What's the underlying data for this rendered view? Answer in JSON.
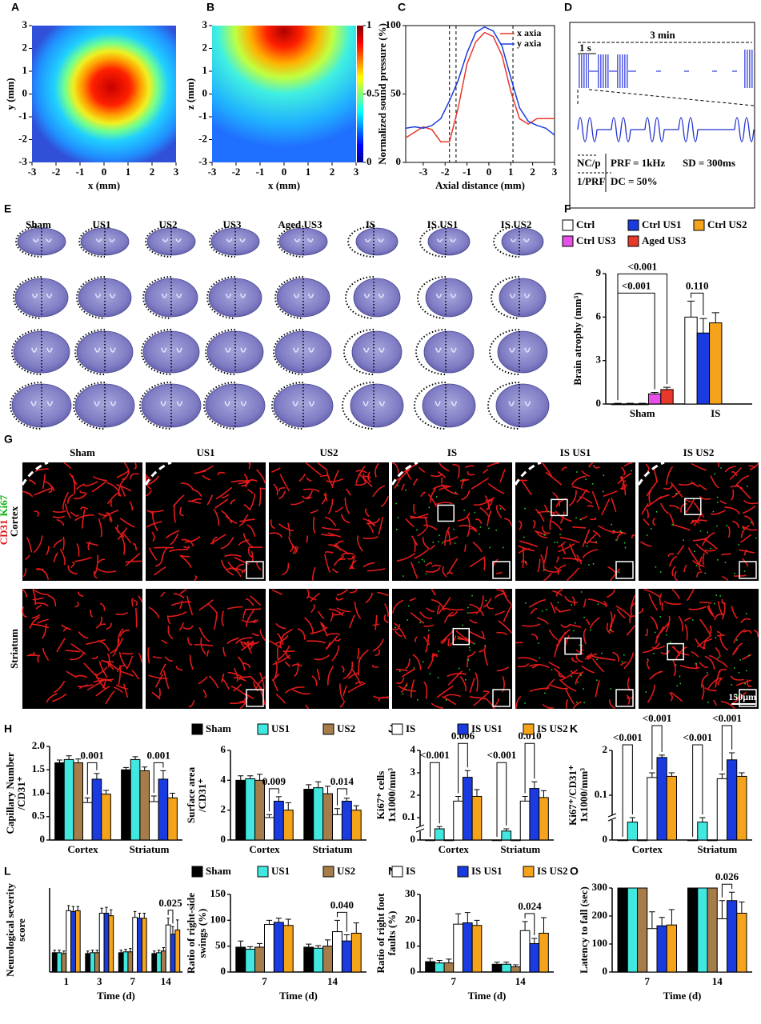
{
  "chart_data": [
    {
      "panel": "A",
      "type": "heatmap",
      "xlabel": "x (mm)",
      "ylabel": [
        "y (mm)"
      ],
      "xlim": [
        -3,
        3
      ],
      "ylim": [
        -3,
        3
      ],
      "xticks": [
        -3,
        -2,
        -1,
        0,
        1,
        2,
        3
      ],
      "yticks": [
        -3,
        -2,
        -1,
        0,
        1,
        2,
        3
      ]
    },
    {
      "panel": "B",
      "type": "heatmap",
      "xlabel": "x (mm)",
      "ylabel": [
        "z (mm)"
      ],
      "xlim": [
        -3,
        3
      ],
      "ylim": [
        -3,
        3
      ],
      "xticks": [
        -3,
        -2,
        -1,
        0,
        1,
        2,
        3
      ],
      "yticks": [
        -3,
        -2,
        -1,
        0,
        1,
        2,
        3
      ],
      "clim": [
        0,
        1
      ],
      "colorbar_ticks": [
        0,
        0.5,
        1
      ]
    },
    {
      "panel": "C",
      "type": "line",
      "xlabel": "Axial distance (mm)",
      "ylabel": [
        "Normalized sound pressure (%)"
      ],
      "x": [
        -3.8,
        -3.4,
        -3.0,
        -2.6,
        -2.2,
        -1.8,
        -1.4,
        -1.0,
        -0.6,
        -0.2,
        0.2,
        0.6,
        1.0,
        1.4,
        1.8,
        2.2,
        2.6,
        3.0
      ],
      "series": [
        {
          "name": "x axia",
          "color": "#e8382a",
          "values": [
            18,
            22,
            26,
            24,
            15,
            15,
            40,
            72,
            88,
            95,
            92,
            78,
            52,
            32,
            28,
            32,
            32,
            32
          ]
        },
        {
          "name": "y axia",
          "color": "#1a3be0",
          "values": [
            25,
            26,
            25,
            27,
            32,
            45,
            60,
            80,
            95,
            99,
            96,
            85,
            62,
            40,
            30,
            27,
            25,
            20
          ]
        }
      ],
      "xlim": [
        -3.8,
        3
      ],
      "ylim": [
        0,
        100
      ],
      "xticks": [
        -3,
        -2,
        -1,
        0,
        1,
        2,
        3
      ],
      "yticks": [
        0,
        50,
        100
      ],
      "vlines": [
        -1.8,
        -1.5,
        1.1
      ]
    },
    {
      "panel": "F",
      "type": "bar",
      "ylabel": [
        "Brain atrophy (mm³)"
      ],
      "categories": [
        "Sham",
        "IS"
      ],
      "series": [
        {
          "name": "Ctrl",
          "color": "#ffffff",
          "values": [
            0,
            6.0
          ],
          "errors": [
            0.05,
            1.1
          ]
        },
        {
          "name": "Ctrl US1",
          "color": "#1a3be0",
          "values": [
            0,
            4.9
          ],
          "errors": [
            0.05,
            1.0
          ]
        },
        {
          "name": "Ctrl US2",
          "color": "#f5a31a",
          "values": [
            0,
            5.6
          ],
          "errors": [
            0.05,
            0.7
          ]
        },
        {
          "name": "Ctrl US3",
          "color": "#e650e6",
          "values": [
            0.7,
            null
          ],
          "errors": [
            0.1,
            null
          ]
        },
        {
          "name": "Aged US3",
          "color": "#e8382a",
          "values": [
            1.0,
            null
          ],
          "errors": [
            0.15,
            null
          ]
        }
      ],
      "ylim": [
        0,
        9
      ],
      "yticks": [
        0,
        3,
        6,
        9
      ],
      "annotations": [
        {
          "text": "<0.001",
          "group": 0,
          "from": 0,
          "to": 3
        },
        {
          "text": "<0.001",
          "group": 0,
          "from": 0,
          "to": 4
        },
        {
          "text": "0.110",
          "group": 1,
          "from": 0,
          "to": 1
        }
      ]
    },
    {
      "panel": "H",
      "type": "bar",
      "ylabel": [
        "Capillary Number",
        "/CD31⁺"
      ],
      "categories": [
        "Cortex",
        "Striatum"
      ],
      "series": [
        {
          "color": "#000000",
          "values": [
            1.65,
            1.5
          ],
          "errors": [
            0.06,
            0.05
          ]
        },
        {
          "color": "#40e8e0",
          "values": [
            1.72,
            1.72
          ],
          "errors": [
            0.08,
            0.06
          ]
        },
        {
          "color": "#a57c4a",
          "values": [
            1.65,
            1.48
          ],
          "errors": [
            0.08,
            0.08
          ]
        },
        {
          "color": "#ffffff",
          "values": [
            0.8,
            0.82
          ],
          "errors": [
            0.1,
            0.12
          ]
        },
        {
          "color": "#1a3be0",
          "values": [
            1.3,
            1.3
          ],
          "errors": [
            0.12,
            0.18
          ]
        },
        {
          "color": "#f5a31a",
          "values": [
            0.98,
            0.9
          ],
          "errors": [
            0.08,
            0.1
          ]
        }
      ],
      "ylim": [
        0,
        2
      ],
      "yticks": [
        0,
        0.5,
        {
          "value": 1,
          "label": "1.0"
        },
        1.5,
        {
          "value": 2,
          "label": "2.0"
        }
      ],
      "annotations": [
        {
          "text": "0.001",
          "group": 0,
          "from": 3,
          "to": 4
        },
        {
          "text": "0.001",
          "group": 1,
          "from": 3,
          "to": 4
        }
      ]
    },
    {
      "panel": "I",
      "type": "bar",
      "ylabel": [
        "Surface area",
        "/CD31⁺"
      ],
      "categories": [
        "Cortex",
        "Striatum"
      ],
      "series": [
        {
          "name": "Sham",
          "color": "#000000",
          "values": [
            4.0,
            3.4
          ],
          "errors": [
            0.3,
            0.3
          ]
        },
        {
          "name": "US1",
          "color": "#40e8e0",
          "values": [
            4.1,
            3.5
          ],
          "errors": [
            0.2,
            0.4
          ]
        },
        {
          "name": "US2",
          "color": "#a57c4a",
          "values": [
            4.0,
            3.1
          ],
          "errors": [
            0.4,
            0.5
          ]
        },
        {
          "color": "#ffffff",
          "values": [
            1.5,
            1.7
          ],
          "errors": [
            0.2,
            0.4
          ]
        },
        {
          "color": "#1a3be0",
          "values": [
            2.6,
            2.6
          ],
          "errors": [
            0.3,
            0.2
          ]
        },
        {
          "color": "#f5a31a",
          "values": [
            2.0,
            2.0
          ],
          "errors": [
            0.5,
            0.3
          ]
        }
      ],
      "ylim": [
        0,
        6
      ],
      "yticks": [
        0,
        2,
        4,
        6
      ],
      "annotations": [
        {
          "text": "0.009",
          "group": 0,
          "from": 3,
          "to": 4
        },
        {
          "text": "0.014",
          "group": 1,
          "from": 3,
          "to": 4
        }
      ]
    },
    {
      "panel": "J",
      "type": "bar",
      "ylabel": [
        "Ki67⁺ cells",
        "1x1000/mm³"
      ],
      "categories": [
        "Cortex",
        "Striatum"
      ],
      "broken_axis": true,
      "series": [
        {
          "color": "#000000",
          "values": [
            0,
            0
          ],
          "errors": [
            0,
            0
          ]
        },
        {
          "color": "#40e8e0",
          "values": [
            0.05,
            0.04
          ],
          "errors": [
            0.01,
            0.01
          ]
        },
        {
          "color": "#a57c4a",
          "values": [
            0,
            0
          ],
          "errors": [
            0,
            0
          ]
        },
        {
          "name": "IS",
          "color": "#ffffff",
          "values": [
            1.5,
            1.5
          ],
          "errors": [
            0.4,
            0.4
          ]
        },
        {
          "name": "IS US1",
          "color": "#1a3be0",
          "values": [
            2.8,
            2.3
          ],
          "errors": [
            0.3,
            0.3
          ]
        },
        {
          "name": "IS US2",
          "color": "#f5a31a",
          "values": [
            1.9,
            1.8
          ],
          "errors": [
            0.35,
            0.4
          ]
        }
      ],
      "ylim": [
        0,
        4
      ],
      "yticks": [
        0,
        0.1,
        2,
        3,
        4
      ],
      "annotations": [
        {
          "text": "<0.001",
          "group": 0,
          "from": 0,
          "to": 1
        },
        {
          "text": "0.006",
          "group": 0,
          "from": 3,
          "to": 4
        },
        {
          "text": "<0.001",
          "group": 1,
          "from": 0,
          "to": 1
        },
        {
          "text": "0.010",
          "group": 1,
          "from": 3,
          "to": 4
        }
      ]
    },
    {
      "panel": "K",
      "type": "bar",
      "ylabel": [
        "Ki67⁺/CD31⁺",
        "1x1000/mm³"
      ],
      "categories": [
        "Cortex",
        "Striatum"
      ],
      "broken_axis": true,
      "series": [
        {
          "color": "#000000",
          "values": [
            0,
            0
          ],
          "errors": [
            0,
            0
          ]
        },
        {
          "color": "#40e8e0",
          "values": [
            0.04,
            0.04
          ],
          "errors": [
            0.01,
            0.01
          ]
        },
        {
          "color": "#a57c4a",
          "values": [
            0,
            0
          ],
          "errors": [
            0,
            0
          ]
        },
        {
          "color": "#ffffff",
          "values": [
            0.85,
            0.8
          ],
          "errors": [
            0.2,
            0.2
          ]
        },
        {
          "color": "#1a3be0",
          "values": [
            1.7,
            1.6
          ],
          "errors": [
            0.1,
            0.3
          ]
        },
        {
          "color": "#f5a31a",
          "values": [
            0.9,
            0.9
          ],
          "errors": [
            0.15,
            0.15
          ]
        }
      ],
      "ylim": [
        0,
        2
      ],
      "yticks": [
        0,
        0.1,
        2
      ],
      "annotations": [
        {
          "text": "<0.001",
          "group": 0,
          "from": 0,
          "to": 1
        },
        {
          "text": "<0.001",
          "group": 0,
          "from": 3,
          "to": 4
        },
        {
          "text": "<0.001",
          "group": 1,
          "from": 0,
          "to": 1
        },
        {
          "text": "<0.001",
          "group": 1,
          "from": 3,
          "to": 4
        }
      ]
    },
    {
      "panel": "L",
      "type": "bar",
      "ylabel": [
        "Neurological severity",
        "score"
      ],
      "xlabel": "Time (d)",
      "categories": [
        "1",
        "3",
        "7",
        "14"
      ],
      "series": [
        {
          "color": "#000000",
          "values": [
            2.3,
            2.2,
            2.3,
            2.2
          ],
          "errors": [
            0.3,
            0.3,
            0.3,
            0.3
          ]
        },
        {
          "color": "#40e8e0",
          "values": [
            2.3,
            2.3,
            2.4,
            2.3
          ],
          "errors": [
            0.3,
            0.3,
            0.3,
            0.3
          ]
        },
        {
          "color": "#a57c4a",
          "values": [
            2.2,
            2.3,
            2.4,
            2.5
          ],
          "errors": [
            0.3,
            0.3,
            0.4,
            0.4
          ]
        },
        {
          "color": "#ffffff",
          "values": [
            7.3,
            7.0,
            6.5,
            5.6
          ],
          "errors": [
            0.6,
            0.6,
            0.7,
            0.8
          ]
        },
        {
          "color": "#1a3be0",
          "values": [
            7.2,
            7.0,
            6.4,
            4.5
          ],
          "errors": [
            0.6,
            0.7,
            0.6,
            0.9
          ]
        },
        {
          "color": "#f5a31a",
          "values": [
            7.3,
            6.7,
            6.4,
            5.0
          ],
          "errors": [
            0.5,
            0.7,
            0.6,
            1.2
          ]
        }
      ],
      "ylim": [
        0,
        10
      ],
      "annotations": [
        {
          "text": "0.025",
          "group": 3,
          "from": 3,
          "to": 4
        }
      ]
    },
    {
      "panel": "M",
      "type": "bar",
      "ylabel": [
        "Ratio of right-side",
        "swings (%)"
      ],
      "xlabel": "Time (d)",
      "categories": [
        "7",
        "14"
      ],
      "series": [
        {
          "name": "Sham",
          "color": "#000000",
          "values": [
            48,
            48
          ],
          "errors": [
            12,
            6
          ]
        },
        {
          "name": "US1",
          "color": "#40e8e0",
          "values": [
            44,
            46
          ],
          "errors": [
            5,
            5
          ]
        },
        {
          "name": "US2",
          "color": "#a57c4a",
          "values": [
            48,
            50
          ],
          "errors": [
            7,
            12
          ]
        },
        {
          "color": "#ffffff",
          "values": [
            92,
            78
          ],
          "errors": [
            8,
            22
          ]
        },
        {
          "color": "#1a3be0",
          "values": [
            96,
            60
          ],
          "errors": [
            8,
            12
          ]
        },
        {
          "color": "#f5a31a",
          "values": [
            90,
            75
          ],
          "errors": [
            12,
            20
          ]
        }
      ],
      "ylim": [
        0,
        150
      ],
      "yticks": [
        0,
        50,
        100,
        150
      ],
      "annotations": [
        {
          "text": "0.040",
          "group": 1,
          "from": 3,
          "to": 4
        }
      ]
    },
    {
      "panel": "N",
      "type": "bar",
      "ylabel": [
        "Ratio of right foot",
        "faults (%)"
      ],
      "xlabel": "Time (d)",
      "categories": [
        "7",
        "14"
      ],
      "series": [
        {
          "color": "#000000",
          "values": [
            4,
            3
          ],
          "errors": [
            1.2,
            0.8
          ]
        },
        {
          "color": "#40e8e0",
          "values": [
            3.5,
            3
          ],
          "errors": [
            1,
            0.8
          ]
        },
        {
          "color": "#a57c4a",
          "values": [
            3.5,
            2
          ],
          "errors": [
            1.5,
            0.8
          ]
        },
        {
          "name": "IS",
          "color": "#ffffff",
          "values": [
            18.5,
            16
          ],
          "errors": [
            4,
            3.5
          ]
        },
        {
          "name": "IS US1",
          "color": "#1a3be0",
          "values": [
            19,
            11
          ],
          "errors": [
            4,
            2
          ]
        },
        {
          "name": "IS US2",
          "color": "#f5a31a",
          "values": [
            18,
            15
          ],
          "errors": [
            2,
            6
          ]
        }
      ],
      "ylim": [
        0,
        30
      ],
      "yticks": [
        0,
        10,
        20,
        30
      ],
      "annotations": [
        {
          "text": "0.024",
          "group": 1,
          "from": 3,
          "to": 4
        }
      ]
    },
    {
      "panel": "O",
      "type": "bar",
      "ylabel": [
        "Latency to fall (sec)"
      ],
      "xlabel": "Time (d)",
      "categories": [
        "7",
        "14"
      ],
      "series": [
        {
          "color": "#000000",
          "values": [
            300,
            300
          ],
          "errors": [
            0,
            0
          ]
        },
        {
          "color": "#40e8e0",
          "values": [
            300,
            300
          ],
          "errors": [
            0,
            0
          ]
        },
        {
          "color": "#a57c4a",
          "values": [
            300,
            300
          ],
          "errors": [
            0,
            0
          ]
        },
        {
          "color": "#ffffff",
          "values": [
            155,
            190
          ],
          "errors": [
            60,
            65
          ]
        },
        {
          "color": "#1a3be0",
          "values": [
            165,
            255
          ],
          "errors": [
            30,
            30
          ]
        },
        {
          "color": "#f5a31a",
          "values": [
            168,
            210
          ],
          "errors": [
            55,
            40
          ]
        }
      ],
      "ylim": [
        0,
        300
      ],
      "yticks": [
        0,
        100,
        200,
        300
      ],
      "annotations": [
        {
          "text": "0.026",
          "group": 1,
          "from": 3,
          "to": 4
        }
      ]
    }
  ],
  "diagram_d": {
    "panel": "D",
    "duration": "3 min",
    "interval": "1 s",
    "nc": "NC/p",
    "period": "1/PRF",
    "prf": "PRF = 1kHz",
    "sd": "SD = 300ms",
    "dc": "DC = 50%"
  },
  "brain_sections": {
    "panel": "E",
    "labels": [
      "Sham",
      "US1",
      "US2",
      "US3",
      "Aged US3",
      "IS",
      "IS US1",
      "IS US2"
    ]
  },
  "microscopy": {
    "panel": "G",
    "columns": [
      "Sham",
      "US1",
      "US2",
      "IS",
      "IS US1",
      "IS US2"
    ],
    "rows": [
      "Cortex",
      "Striatum"
    ],
    "stain": [
      {
        "text": "CD31",
        "color": "#e01010"
      },
      {
        "text": "Ki67",
        "color": "#10b010"
      }
    ],
    "scale_bar": "150μm"
  }
}
